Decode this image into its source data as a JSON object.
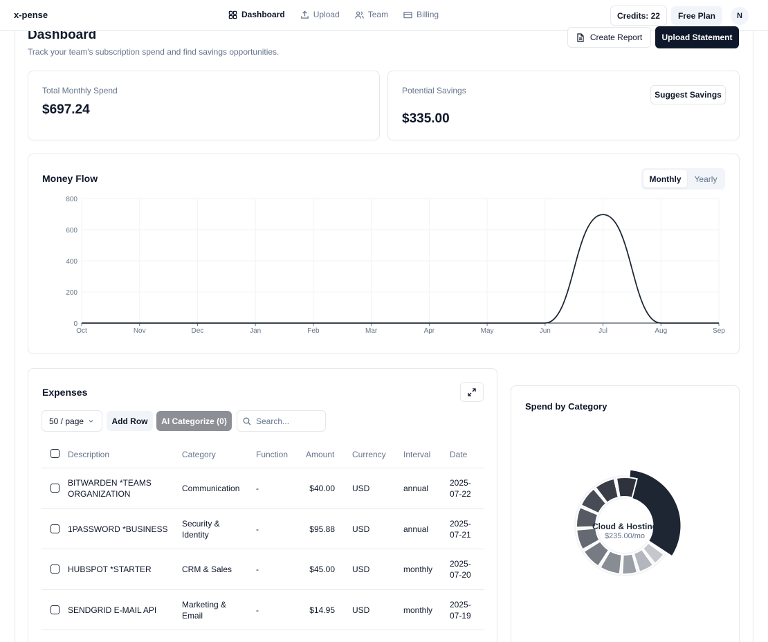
{
  "app": {
    "brand": "x-pense"
  },
  "nav": {
    "items": [
      {
        "label": "Dashboard",
        "icon": "grid-icon",
        "active": true
      },
      {
        "label": "Upload",
        "icon": "upload-icon",
        "active": false
      },
      {
        "label": "Team",
        "icon": "users-icon",
        "active": false
      },
      {
        "label": "Billing",
        "icon": "credit-card-icon",
        "active": false
      }
    ],
    "credits": "Credits: 22",
    "plan": "Free Plan",
    "avatar": "N"
  },
  "header": {
    "title": "Dashboard",
    "subtitle": "Track your team's subscription spend and find savings opportunities.",
    "create_report": "Create Report",
    "upload_statement": "Upload Statement"
  },
  "stats": {
    "total_label": "Total Monthly Spend",
    "total_value": "$697.24",
    "savings_label": "Potential Savings",
    "savings_value": "$335.00",
    "suggest_savings": "Suggest Savings"
  },
  "money_flow": {
    "title": "Money Flow",
    "toggle": [
      "Monthly",
      "Yearly"
    ],
    "active_toggle": "Monthly"
  },
  "chart_data": {
    "type": "line",
    "title": "Money Flow",
    "x": [
      "Oct",
      "Nov",
      "Dec",
      "Jan",
      "Feb",
      "Mar",
      "Apr",
      "May",
      "Jun",
      "Jul",
      "Aug",
      "Sep"
    ],
    "series": [
      {
        "values": [
          0,
          0,
          0,
          0,
          0,
          0,
          0,
          0,
          0,
          697.24,
          0,
          0
        ]
      }
    ],
    "yticks": [
      0,
      200,
      400,
      600,
      800
    ],
    "ylim": [
      0,
      800
    ],
    "grid": true,
    "curve": "smooth",
    "color": "#1f2937"
  },
  "expenses": {
    "title": "Expenses",
    "page_size": "50 / page",
    "add_row": "Add Row",
    "ai_categorize": "AI Categorize (0)",
    "search_placeholder": "Search...",
    "columns": [
      "Description",
      "Category",
      "Function",
      "Amount",
      "Currency",
      "Interval",
      "Date"
    ],
    "rows": [
      {
        "description": [
          "BITWARDEN *TEAMS",
          "ORGANIZATION"
        ],
        "category": [
          "Communication"
        ],
        "function": "-",
        "amount": "$40.00",
        "currency": "USD",
        "interval": "annual",
        "date": [
          "2025-",
          "07-22"
        ]
      },
      {
        "description": [
          "1PASSWORD *BUSINESS"
        ],
        "category": [
          "Security &",
          "Identity"
        ],
        "function": "-",
        "amount": "$95.88",
        "currency": "USD",
        "interval": "annual",
        "date": [
          "2025-",
          "07-21"
        ]
      },
      {
        "description": [
          "HUBSPOT *STARTER"
        ],
        "category": [
          "CRM & Sales"
        ],
        "function": "-",
        "amount": "$45.00",
        "currency": "USD",
        "interval": "monthly",
        "date": [
          "2025-",
          "07-20"
        ]
      },
      {
        "description": [
          "SENDGRID E-MAIL API"
        ],
        "category": [
          "Marketing &",
          "Email"
        ],
        "function": "-",
        "amount": "$14.95",
        "currency": "USD",
        "interval": "monthly",
        "date": [
          "2025-",
          "07-19"
        ]
      }
    ]
  },
  "category": {
    "title": "Spend by Category",
    "center_label": "Cloud & Hosting",
    "center_value": "$235.00/mo",
    "highlight_color": "#1e2533",
    "segment_colors": [
      "#1e2533",
      "#c4c7cc",
      "#b3b6bc",
      "#9a9ea5",
      "#888c93",
      "#777b83",
      "#656a72",
      "#555a63",
      "#464b55",
      "#383d47",
      "#2d323c"
    ],
    "segment_share": [
      0.337,
      0.05,
      0.058,
      0.058,
      0.076,
      0.076,
      0.076,
      0.076,
      0.076,
      0.076,
      0.076
    ]
  }
}
